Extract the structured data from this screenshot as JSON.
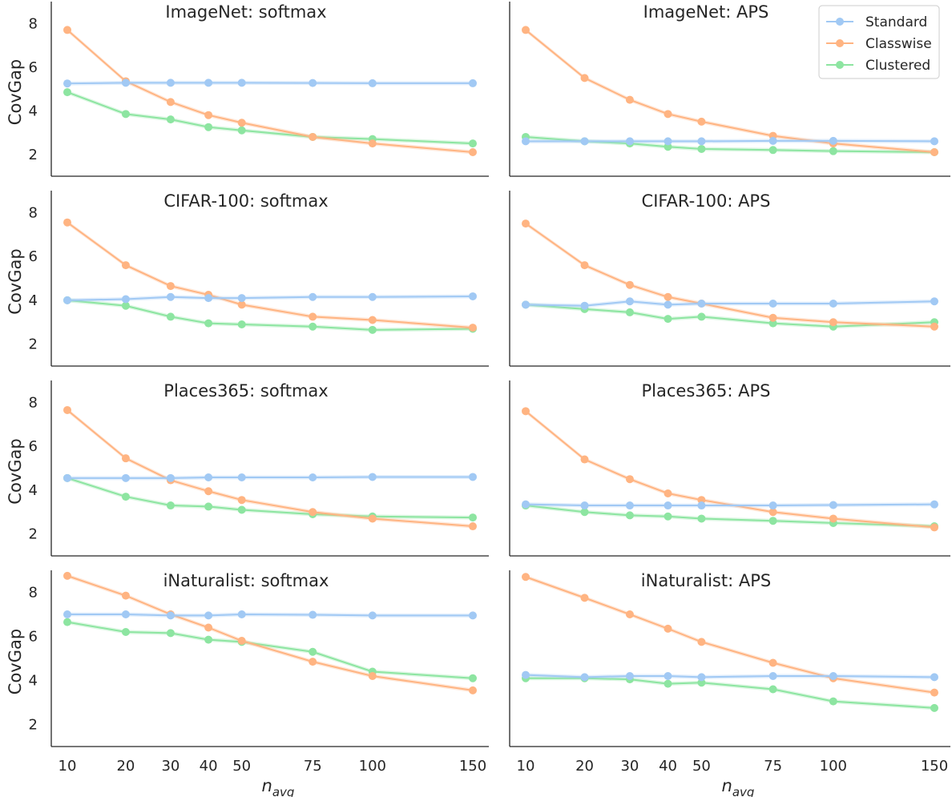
{
  "chart_data": {
    "type": "line",
    "x": [
      10,
      20,
      30,
      40,
      50,
      75,
      100,
      150
    ],
    "x_tick_labels": [
      "10",
      "20",
      "30",
      "40",
      "50",
      "75",
      "100",
      "150"
    ],
    "x_scale": "sqrt",
    "xlabel_base": "n",
    "xlabel_sub": "avg",
    "ylabel": "CovGap",
    "ylim": [
      1,
      9
    ],
    "yticks": [
      "2",
      "4",
      "6",
      "8"
    ],
    "grid": false,
    "legend_placement": "top-right",
    "colors": {
      "Standard": "#a1c9f4",
      "Classwise": "#ffb482",
      "Clustered": "#8de5a1"
    },
    "legend": [
      "Standard",
      "Classwise",
      "Clustered"
    ],
    "panels": [
      {
        "title": "ImageNet: softmax",
        "series": [
          {
            "name": "Standard",
            "values": [
              5.25,
              5.28,
              5.28,
              5.28,
              5.28,
              5.27,
              5.26,
              5.26
            ]
          },
          {
            "name": "Classwise",
            "values": [
              7.7,
              5.35,
              4.4,
              3.8,
              3.45,
              2.8,
              2.5,
              2.1
            ]
          },
          {
            "name": "Clustered",
            "values": [
              4.85,
              3.85,
              3.6,
              3.25,
              3.1,
              2.8,
              2.7,
              2.5
            ]
          }
        ]
      },
      {
        "title": "ImageNet: APS",
        "series": [
          {
            "name": "Standard",
            "values": [
              2.6,
              2.6,
              2.6,
              2.6,
              2.6,
              2.62,
              2.62,
              2.6
            ]
          },
          {
            "name": "Classwise",
            "values": [
              7.7,
              5.5,
              4.5,
              3.85,
              3.5,
              2.85,
              2.5,
              2.1
            ]
          },
          {
            "name": "Clustered",
            "values": [
              2.8,
              2.6,
              2.5,
              2.35,
              2.25,
              2.2,
              2.15,
              2.1
            ]
          }
        ]
      },
      {
        "title": "CIFAR-100: softmax",
        "series": [
          {
            "name": "Standard",
            "values": [
              4.0,
              4.05,
              4.15,
              4.1,
              4.1,
              4.15,
              4.15,
              4.18
            ]
          },
          {
            "name": "Classwise",
            "values": [
              7.55,
              5.6,
              4.65,
              4.25,
              3.8,
              3.25,
              3.1,
              2.75
            ]
          },
          {
            "name": "Clustered",
            "values": [
              4.0,
              3.75,
              3.25,
              2.95,
              2.9,
              2.8,
              2.65,
              2.7
            ]
          }
        ]
      },
      {
        "title": "CIFAR-100: APS",
        "series": [
          {
            "name": "Standard",
            "values": [
              3.8,
              3.75,
              3.95,
              3.8,
              3.85,
              3.85,
              3.85,
              3.95
            ]
          },
          {
            "name": "Classwise",
            "values": [
              7.5,
              5.6,
              4.7,
              4.15,
              3.85,
              3.2,
              3.0,
              2.8
            ]
          },
          {
            "name": "Clustered",
            "values": [
              3.8,
              3.6,
              3.45,
              3.15,
              3.25,
              2.95,
              2.8,
              3.0
            ]
          }
        ]
      },
      {
        "title": "Places365: softmax",
        "series": [
          {
            "name": "Standard",
            "values": [
              4.55,
              4.55,
              4.55,
              4.58,
              4.58,
              4.58,
              4.6,
              4.6
            ]
          },
          {
            "name": "Classwise",
            "values": [
              7.65,
              5.45,
              4.45,
              3.95,
              3.55,
              3.0,
              2.7,
              2.35
            ]
          },
          {
            "name": "Clustered",
            "values": [
              4.55,
              3.7,
              3.3,
              3.25,
              3.1,
              2.9,
              2.8,
              2.75
            ]
          }
        ]
      },
      {
        "title": "Places365: APS",
        "series": [
          {
            "name": "Standard",
            "values": [
              3.35,
              3.3,
              3.3,
              3.3,
              3.3,
              3.3,
              3.32,
              3.35
            ]
          },
          {
            "name": "Classwise",
            "values": [
              7.6,
              5.4,
              4.5,
              3.85,
              3.55,
              3.0,
              2.7,
              2.3
            ]
          },
          {
            "name": "Clustered",
            "values": [
              3.3,
              3.0,
              2.85,
              2.8,
              2.7,
              2.6,
              2.5,
              2.35
            ]
          }
        ]
      },
      {
        "title": "iNaturalist: softmax",
        "series": [
          {
            "name": "Standard",
            "values": [
              7.0,
              7.0,
              6.95,
              6.95,
              7.0,
              6.98,
              6.95,
              6.95
            ]
          },
          {
            "name": "Classwise",
            "values": [
              8.75,
              7.85,
              7.0,
              6.4,
              5.8,
              4.85,
              4.2,
              3.55
            ]
          },
          {
            "name": "Clustered",
            "values": [
              6.65,
              6.2,
              6.15,
              5.85,
              5.75,
              5.3,
              4.4,
              4.1
            ]
          }
        ]
      },
      {
        "title": "iNaturalist: APS",
        "series": [
          {
            "name": "Standard",
            "values": [
              4.25,
              4.15,
              4.2,
              4.2,
              4.15,
              4.2,
              4.2,
              4.15
            ]
          },
          {
            "name": "Classwise",
            "values": [
              8.7,
              7.75,
              7.0,
              6.35,
              5.75,
              4.8,
              4.1,
              3.45
            ]
          },
          {
            "name": "Clustered",
            "values": [
              4.1,
              4.1,
              4.05,
              3.85,
              3.9,
              3.6,
              3.05,
              2.75
            ]
          }
        ]
      }
    ]
  }
}
